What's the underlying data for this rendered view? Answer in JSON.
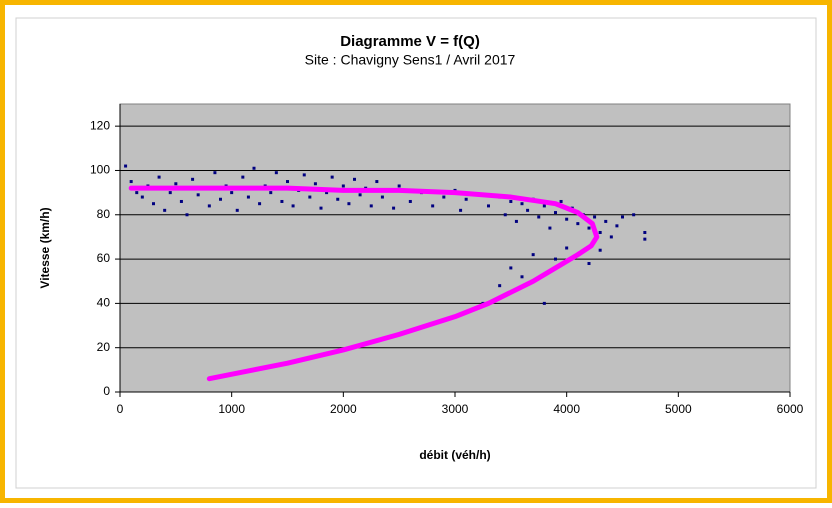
{
  "chart_data": {
    "type": "scatter",
    "title": "Diagramme V = f(Q)",
    "subtitle": "Site : Chavigny Sens1 / Avril 2017",
    "xlabel": "débit (véh/h)",
    "ylabel": "Vitesse (km/h)",
    "xlim": [
      0,
      6000
    ],
    "xticks": [
      0,
      1000,
      2000,
      3000,
      4000,
      5000,
      6000
    ],
    "ylim": [
      0,
      130
    ],
    "yticks": [
      0,
      20,
      40,
      60,
      80,
      100,
      120
    ],
    "grid": true,
    "series": [
      {
        "color": "#000080",
        "style": "markers",
        "x": [
          50,
          100,
          150,
          200,
          250,
          300,
          350,
          400,
          450,
          500,
          550,
          600,
          650,
          700,
          750,
          800,
          850,
          900,
          950,
          1000,
          1050,
          1100,
          1150,
          1200,
          1250,
          1300,
          1350,
          1400,
          1450,
          1500,
          1550,
          1600,
          1650,
          1700,
          1750,
          1800,
          1850,
          1900,
          1950,
          2000,
          2050,
          2100,
          2150,
          2200,
          2250,
          2300,
          2350,
          2400,
          2450,
          2500,
          2600,
          2700,
          2800,
          2900,
          3000,
          3050,
          3100,
          3200,
          3300,
          3400,
          3450,
          3500,
          3550,
          3600,
          3650,
          3700,
          3750,
          3800,
          3850,
          3900,
          3950,
          4000,
          4050,
          4100,
          4150,
          4200,
          4250,
          4300,
          4350,
          4400,
          4450,
          4500,
          4600,
          4700,
          4700,
          3900,
          4000,
          3700,
          3500,
          3400,
          3250,
          3800,
          3600,
          4300,
          4200
        ],
        "values": [
          102,
          95,
          90,
          88,
          93,
          85,
          97,
          82,
          90,
          94,
          86,
          80,
          96,
          89,
          92,
          84,
          99,
          87,
          93,
          90,
          82,
          97,
          88,
          101,
          85,
          93,
          90,
          99,
          86,
          95,
          84,
          91,
          98,
          88,
          94,
          83,
          90,
          97,
          87,
          93,
          85,
          96,
          89,
          92,
          84,
          95,
          88,
          91,
          83,
          93,
          86,
          90,
          84,
          88,
          91,
          82,
          87,
          89,
          84,
          88,
          80,
          86,
          77,
          85,
          82,
          87,
          79,
          84,
          74,
          81,
          86,
          78,
          83,
          76,
          80,
          74,
          79,
          72,
          77,
          70,
          75,
          79,
          80,
          72,
          69,
          60,
          65,
          62,
          56,
          48,
          40,
          40,
          52,
          64,
          58
        ]
      },
      {
        "color": "#ff00ff",
        "style": "line",
        "x": [
          800,
          1200,
          1500,
          2000,
          2500,
          3000,
          3300,
          3500,
          3700,
          3900,
          4100,
          4220,
          4270,
          4230,
          4100,
          3900,
          3500,
          3000,
          2500,
          2000,
          1500,
          1000,
          500,
          100
        ],
        "values": [
          6,
          10,
          13,
          19,
          26,
          34,
          40,
          45,
          50,
          56,
          62,
          66,
          70,
          76,
          81,
          85,
          88,
          90,
          91,
          91,
          92,
          92,
          92,
          92
        ]
      }
    ]
  }
}
